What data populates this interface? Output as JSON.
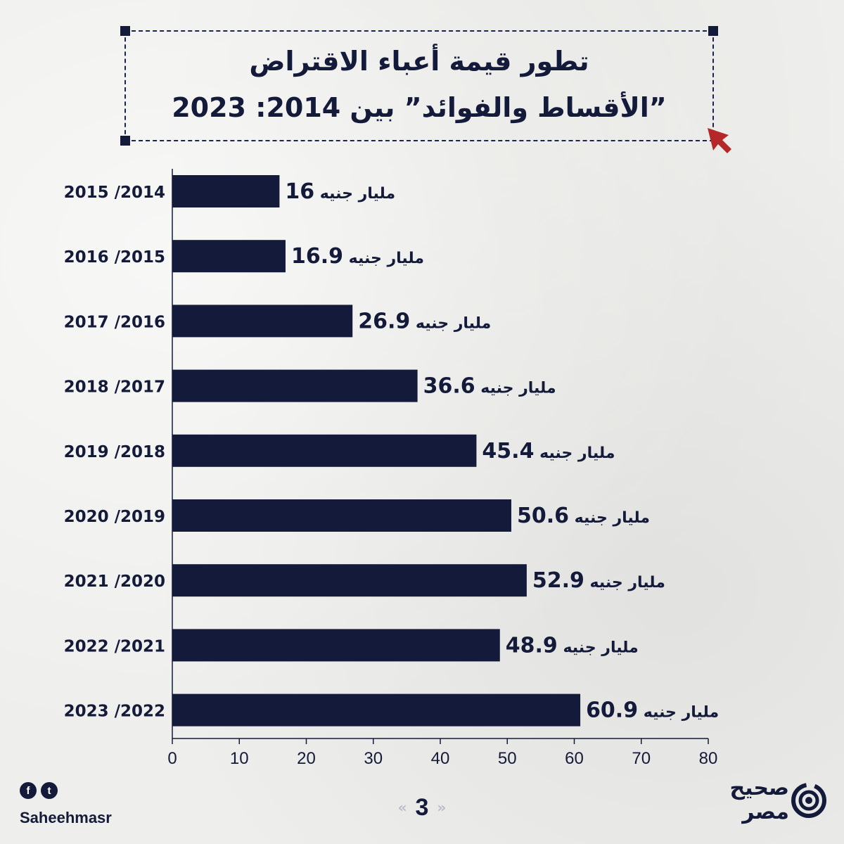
{
  "title": {
    "line1": "تطور قيمة أعباء الاقتراض",
    "line2": "”الأقساط والفوائد” بين 2014: 2023"
  },
  "colors": {
    "bar": "#141b3a",
    "text": "#141b3a",
    "accent": "#b5282a"
  },
  "chart_data": {
    "type": "bar",
    "orientation": "horizontal",
    "title": "تطور قيمة أعباء الاقتراض ”الأقساط والفوائد” بين 2014: 2023",
    "categories": [
      "2014/ 2015",
      "2015/ 2016",
      "2016/ 2017",
      "2017/ 2018",
      "2018/ 2019",
      "2019/ 2020",
      "2020/ 2021",
      "2021/ 2022",
      "2022/ 2023"
    ],
    "category_labels": [
      "2015 /2014",
      "2016 /2015",
      "2017 /2016",
      "2018 /2017",
      "2019 /2018",
      "2020 /2019",
      "2021 /2020",
      "2022 /2021",
      "2023 /2022"
    ],
    "values": [
      16,
      16.9,
      26.9,
      36.6,
      45.4,
      50.6,
      52.9,
      48.9,
      60.9
    ],
    "value_labels": [
      "16",
      "16.9",
      "26.9",
      "36.6",
      "45.4",
      "50.6",
      "52.9",
      "48.9",
      "60.9"
    ],
    "unit_label": "مليار جنيه",
    "xlim": [
      0,
      80
    ],
    "xticks": [
      0,
      10,
      20,
      30,
      40,
      50,
      60,
      70,
      80
    ],
    "xlabel": "",
    "ylabel": "",
    "grid": false,
    "legend": "none"
  },
  "footer": {
    "social": [
      "facebook",
      "twitter"
    ],
    "social_icons": [
      "f",
      "t"
    ],
    "handle": "Saheehmasr",
    "page": "3",
    "prev_icon": "chevron-left-double-icon",
    "next_icon": "chevron-right-double-icon",
    "brand_line1": "صحيح",
    "brand_line2": "مصر"
  }
}
